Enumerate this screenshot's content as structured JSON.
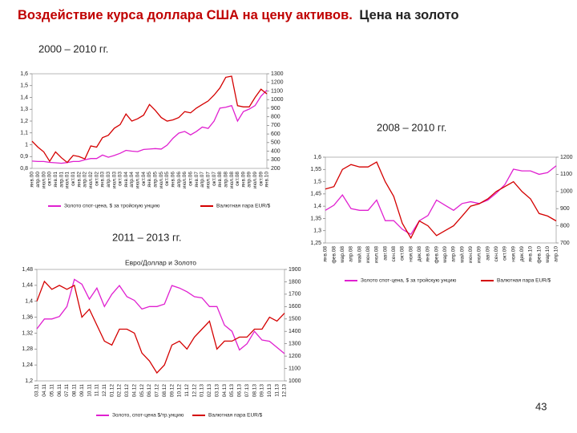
{
  "title_part1": "Воздействие курса доллара США на цену активов.",
  "title_part2": "Цена на золото",
  "period_1": "2000 – 2010 гг.",
  "period_2": "2008 – 2010 гг.",
  "period_3": "2011 – 2013 гг.",
  "page_number": "43",
  "chart_data": [
    {
      "type": "line",
      "categories": [
        "янв.00",
        "апр.00",
        "июл.00",
        "окт.00",
        "янв.01",
        "апр.01",
        "июл.01",
        "окт.01",
        "янв.02",
        "апр.02",
        "июл.02",
        "окт.02",
        "янв.03",
        "апр.03",
        "июл.03",
        "окт.03",
        "янв.04",
        "апр.04",
        "июл.04",
        "окт.04",
        "янв.05",
        "апр.05",
        "июл.05",
        "окт.05",
        "янв.06",
        "апр.06",
        "июл.06",
        "окт.06",
        "янв.07",
        "апр.07",
        "июл.07",
        "окт.07",
        "янв.08",
        "апр.08",
        "июл.08",
        "окт.08",
        "янв.09",
        "апр.09",
        "июл.09",
        "окт.09",
        "янв.10"
      ],
      "series": [
        {
          "name": "Золото спот-цена, $ за тройскую унцию",
          "color": "#e020d0",
          "axis": "y2",
          "values": [
            285,
            280,
            280,
            270,
            265,
            260,
            268,
            280,
            280,
            300,
            315,
            315,
            355,
            330,
            350,
            375,
            410,
            400,
            395,
            420,
            425,
            430,
            425,
            470,
            550,
            610,
            630,
            590,
            630,
            680,
            665,
            750,
            900,
            910,
            930,
            750,
            860,
            890,
            930,
            1040,
            1110
          ]
        },
        {
          "name": "Валютная пара EUR/$",
          "color": "#d40000",
          "values": [
            1.03,
            0.98,
            0.94,
            0.86,
            0.94,
            0.89,
            0.85,
            0.91,
            0.9,
            0.88,
            0.99,
            0.98,
            1.06,
            1.08,
            1.14,
            1.17,
            1.26,
            1.2,
            1.22,
            1.25,
            1.34,
            1.29,
            1.23,
            1.2,
            1.21,
            1.23,
            1.28,
            1.27,
            1.31,
            1.34,
            1.37,
            1.42,
            1.48,
            1.57,
            1.58,
            1.33,
            1.32,
            1.32,
            1.4,
            1.47,
            1.43
          ]
        }
      ],
      "ylim": [
        0.8,
        1.6
      ],
      "yticks": [
        {
          "value": 0.8,
          "label": "0,8"
        },
        {
          "value": 0.9,
          "label": "0,9"
        },
        1,
        {
          "value": 1.1,
          "label": "1,1"
        },
        {
          "value": 1.2,
          "label": "1,2"
        },
        {
          "value": 1.3,
          "label": "1,3"
        },
        {
          "value": 1.4,
          "label": "1,4"
        },
        {
          "value": 1.5,
          "label": "1,5"
        },
        {
          "value": 1.6,
          "label": "1,6"
        }
      ],
      "y2lim": [
        200,
        1300
      ],
      "y2ticks": [
        200,
        300,
        400,
        500,
        600,
        700,
        800,
        900,
        1000,
        1100,
        1200,
        1300
      ]
    },
    {
      "type": "line",
      "categories": [
        "янв.08",
        "фев.08",
        "мар.08",
        "апр.08",
        "май.08",
        "июн.08",
        "июл.08",
        "авг.08",
        "сен.08",
        "окт.08",
        "ноя.08",
        "дек.08",
        "янв.09",
        "фев.09",
        "мар.09",
        "апр.09",
        "май.09",
        "июн.09",
        "июл.09",
        "авг.09",
        "сен.09",
        "окт.09",
        "ноя.09",
        "дек.09",
        "янв.10",
        "фев.10",
        "мар.10",
        "апр.10"
      ],
      "series": [
        {
          "name": "Золото спот-цена, $ за тройскую унцию",
          "color": "#e020d0",
          "axis": "y2",
          "values": [
            890,
            920,
            980,
            900,
            890,
            890,
            950,
            830,
            830,
            780,
            750,
            830,
            860,
            950,
            920,
            890,
            930,
            940,
            930,
            950,
            990,
            1040,
            1130,
            1120,
            1120,
            1100,
            1110,
            1150
          ]
        },
        {
          "name": "Валютная пара EUR/$",
          "color": "#d40000",
          "values": [
            1.47,
            1.48,
            1.55,
            1.57,
            1.56,
            1.56,
            1.58,
            1.5,
            1.44,
            1.33,
            1.27,
            1.34,
            1.32,
            1.28,
            1.3,
            1.32,
            1.36,
            1.4,
            1.41,
            1.43,
            1.46,
            1.48,
            1.5,
            1.46,
            1.43,
            1.37,
            1.36,
            1.34
          ]
        }
      ],
      "ylim": [
        1.25,
        1.6
      ],
      "yticks": [
        {
          "value": 1.25,
          "label": "1,25"
        },
        {
          "value": 1.3,
          "label": "1,3"
        },
        {
          "value": 1.35,
          "label": "1,35"
        },
        {
          "value": 1.4,
          "label": "1,4"
        },
        {
          "value": 1.45,
          "label": "1,45"
        },
        {
          "value": 1.5,
          "label": "1,5"
        },
        {
          "value": 1.55,
          "label": "1,55"
        },
        {
          "value": 1.6,
          "label": "1,6"
        }
      ],
      "y2lim": [
        700,
        1200
      ],
      "y2ticks": [
        700,
        800,
        900,
        1000,
        1100,
        1200
      ]
    },
    {
      "type": "line",
      "title": "Евро/Доллар и Золото",
      "categories": [
        "03.11",
        "04.11",
        "05.11",
        "06.11",
        "07.11",
        "08.11",
        "09.11",
        "10.11",
        "11.11",
        "12.11",
        "01.12",
        "02.12",
        "03.12",
        "04.12",
        "05.12",
        "06.12",
        "07.12",
        "08.12",
        "09.12",
        "10.12",
        "11.12",
        "12.12",
        "01.13",
        "02.13",
        "03.13",
        "04.13",
        "05.13",
        "06.13",
        "07.13",
        "08.13",
        "09.13",
        "10.13",
        "11.13",
        "12.13"
      ],
      "series": [
        {
          "name": "Золото, спот-цена $/тр.унцию",
          "color": "#e020d0",
          "axis": "y2",
          "values": [
            1420,
            1500,
            1500,
            1520,
            1600,
            1820,
            1780,
            1660,
            1750,
            1600,
            1700,
            1770,
            1680,
            1650,
            1580,
            1600,
            1600,
            1620,
            1770,
            1750,
            1720,
            1680,
            1670,
            1600,
            1600,
            1450,
            1400,
            1250,
            1300,
            1400,
            1330,
            1320,
            1270,
            1220
          ]
        },
        {
          "name": "Валютная пара EUR/$",
          "color": "#d40000",
          "values": [
            1.4,
            1.45,
            1.43,
            1.44,
            1.43,
            1.44,
            1.36,
            1.38,
            1.34,
            1.3,
            1.29,
            1.33,
            1.33,
            1.32,
            1.27,
            1.25,
            1.22,
            1.24,
            1.29,
            1.3,
            1.28,
            1.31,
            1.33,
            1.35,
            1.28,
            1.3,
            1.3,
            1.31,
            1.31,
            1.33,
            1.33,
            1.36,
            1.35,
            1.37
          ]
        }
      ],
      "ylim": [
        1.2,
        1.48
      ],
      "yticks": [
        {
          "value": 1.2,
          "label": "1,2"
        },
        {
          "value": 1.24,
          "label": "1,24"
        },
        {
          "value": 1.28,
          "label": "1,28"
        },
        {
          "value": 1.32,
          "label": "1,32"
        },
        {
          "value": 1.36,
          "label": "1,36"
        },
        {
          "value": 1.4,
          "label": "1,4"
        },
        {
          "value": 1.44,
          "label": "1,44"
        },
        {
          "value": 1.48,
          "label": "1,48"
        }
      ],
      "y2lim": [
        1000,
        1900
      ],
      "y2ticks": [
        1000,
        1100,
        1200,
        1300,
        1400,
        1500,
        1600,
        1700,
        1800,
        1900
      ]
    }
  ]
}
